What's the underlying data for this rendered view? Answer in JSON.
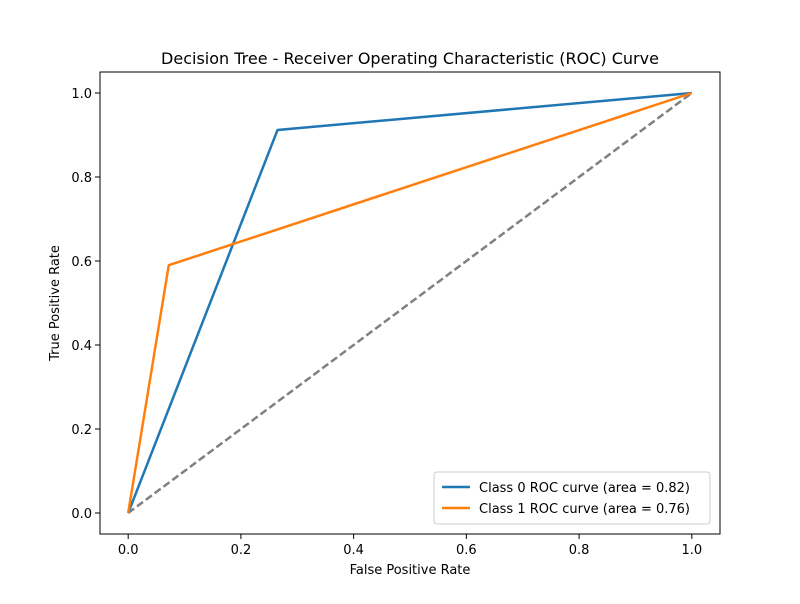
{
  "chart_data": {
    "type": "line",
    "title": "Decision Tree - Receiver Operating Characteristic (ROC) Curve",
    "xlabel": "False Positive Rate",
    "ylabel": "True Positive Rate",
    "xlim": [
      -0.05,
      1.05
    ],
    "ylim": [
      -0.05,
      1.05
    ],
    "xticks": [
      0.0,
      0.2,
      0.4,
      0.6,
      0.8,
      1.0
    ],
    "xtick_labels": [
      "0.0",
      "0.2",
      "0.4",
      "0.6",
      "0.8",
      "1.0"
    ],
    "yticks": [
      0.0,
      0.2,
      0.4,
      0.6,
      0.8,
      1.0
    ],
    "ytick_labels": [
      "0.0",
      "0.2",
      "0.4",
      "0.6",
      "0.8",
      "1.0"
    ],
    "grid": false,
    "legend_position": "lower-right",
    "series": [
      {
        "name": "Class 0 ROC curve (area = 0.82)",
        "color": "#1f77b4",
        "style": "solid",
        "x": [
          0.0,
          0.265,
          1.0
        ],
        "y": [
          0.0,
          0.912,
          1.0
        ]
      },
      {
        "name": "Class 1 ROC curve (area = 0.76)",
        "color": "#ff7f0e",
        "style": "solid",
        "x": [
          0.0,
          0.072,
          1.0
        ],
        "y": [
          0.0,
          0.59,
          1.0
        ]
      }
    ],
    "reference_line": {
      "color": "#808080",
      "style": "dashed",
      "x": [
        0.0,
        1.0
      ],
      "y": [
        0.0,
        1.0
      ]
    }
  }
}
